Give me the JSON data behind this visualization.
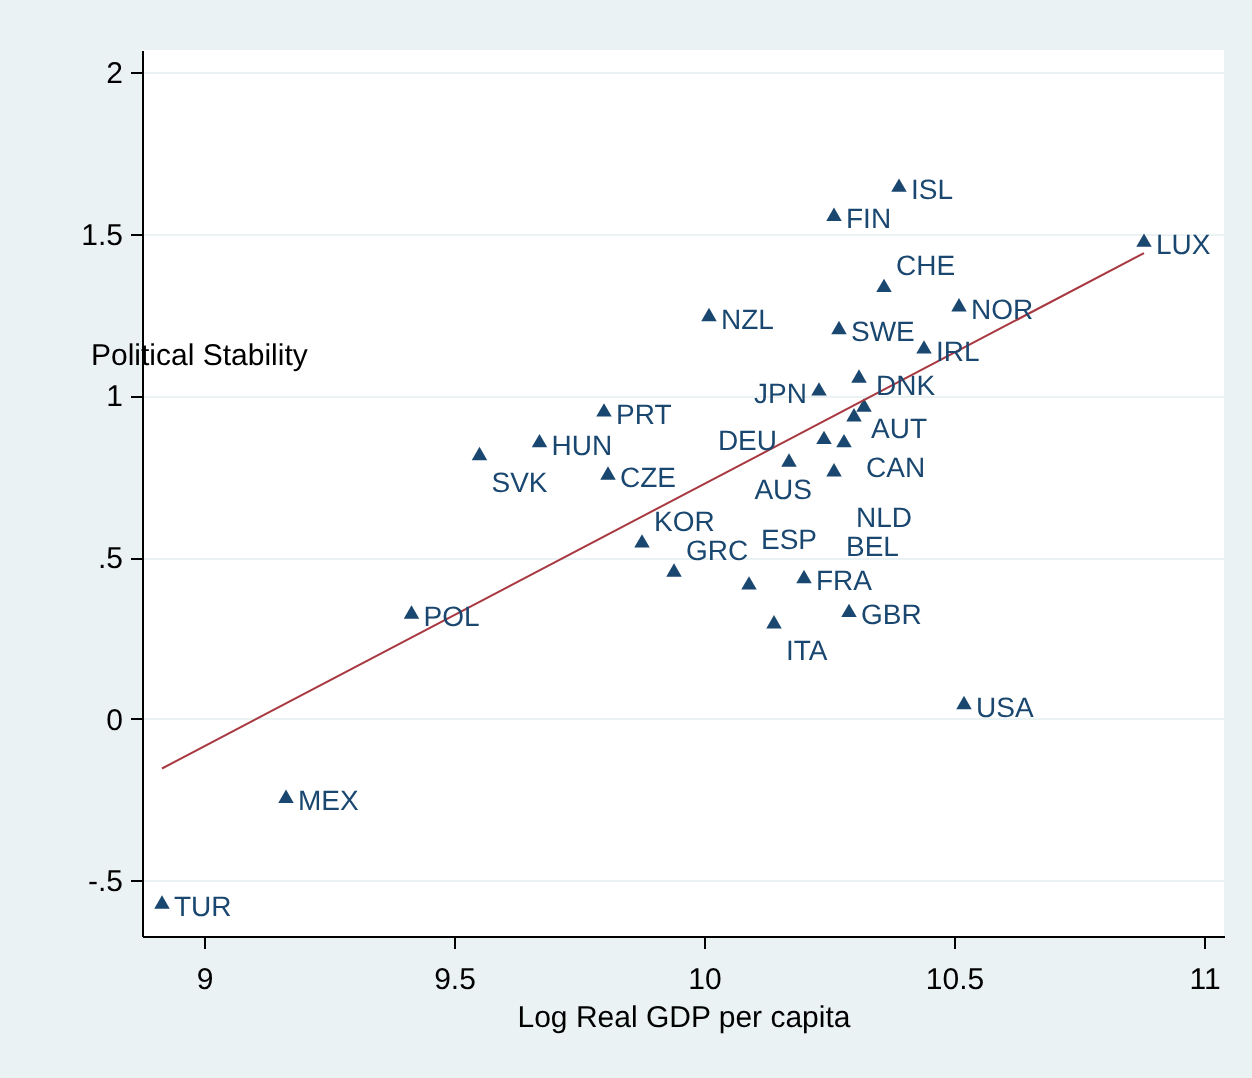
{
  "chart_data": {
    "type": "scatter",
    "xlabel": "Log Real GDP  per capita",
    "ylabel": "Political Stability",
    "xlim": [
      8.876,
      11.04
    ],
    "ylim": [
      -0.672,
      2.068
    ],
    "xticks": [
      9,
      9.5,
      10,
      10.5,
      11
    ],
    "yticks": [
      2,
      1.5,
      1,
      {
        "value": 0.5,
        "label": ".5"
      },
      0,
      {
        "value": -0.5,
        "label": "-.5"
      }
    ],
    "grid": "y",
    "series": [
      {
        "marker": "triangle",
        "color": "#1a476f",
        "x": [
          8.916,
          9.164,
          9.415,
          9.551,
          9.671,
          9.8,
          9.808,
          9.876,
          9.94,
          10.09,
          10.2,
          10.14,
          10.29,
          10.52,
          10.01,
          10.26,
          10.39,
          10.88,
          10.36,
          10.51,
          10.27,
          10.44,
          10.31,
          10.23,
          10.32,
          10.3,
          10.24,
          10.28,
          10.17,
          10.26
        ],
        "values": [
          -0.567,
          -0.24,
          0.33,
          0.82,
          0.86,
          0.955,
          0.76,
          0.55,
          0.46,
          0.42,
          0.44,
          0.3,
          0.335,
          0.05,
          1.25,
          1.56,
          1.65,
          1.48,
          1.34,
          1.28,
          1.21,
          1.15,
          1.06,
          1.02,
          0.97,
          0.94,
          0.87,
          0.86,
          0.8,
          0.77
        ]
      },
      {
        "type": "line",
        "marker": "none",
        "line_style": "solid",
        "color": "#a8373f",
        "x": [
          8.916,
          10.88
        ],
        "values": [
          -0.154,
          1.44
        ]
      }
    ],
    "annotations": [
      {
        "text": "TUR",
        "x": 8.916,
        "y": -0.567
      },
      {
        "text": "MEX",
        "x": 9.164,
        "y": -0.24
      },
      {
        "text": "POL",
        "x": 9.415,
        "y": 0.33
      },
      {
        "text": "SVK",
        "x": 9.551,
        "y": 0.82
      },
      {
        "text": "HUN",
        "x": 9.671,
        "y": 0.86
      },
      {
        "text": "PRT",
        "x": 9.8,
        "y": 0.955
      },
      {
        "text": "CZE",
        "x": 9.808,
        "y": 0.76
      },
      {
        "text": "KOR",
        "x": 9.876,
        "y": 0.55
      },
      {
        "text": "GRC",
        "x": 9.94,
        "y": 0.46
      },
      {
        "text": "ESP",
        "x": 10.09,
        "y": 0.42
      },
      {
        "text": "FRA",
        "x": 10.2,
        "y": 0.44
      },
      {
        "text": "ITA",
        "x": 10.14,
        "y": 0.3
      },
      {
        "text": "GBR",
        "x": 10.29,
        "y": 0.335
      },
      {
        "text": "USA",
        "x": 10.52,
        "y": 0.05
      },
      {
        "text": "NZL",
        "x": 10.01,
        "y": 1.25
      },
      {
        "text": "FIN",
        "x": 10.26,
        "y": 1.56
      },
      {
        "text": "ISL",
        "x": 10.39,
        "y": 1.65
      },
      {
        "text": "LUX",
        "x": 10.88,
        "y": 1.48
      },
      {
        "text": "CHE",
        "x": 10.36,
        "y": 1.34
      },
      {
        "text": "NOR",
        "x": 10.51,
        "y": 1.28
      },
      {
        "text": "SWE",
        "x": 10.27,
        "y": 1.21
      },
      {
        "text": "IRL",
        "x": 10.44,
        "y": 1.15
      },
      {
        "text": "AUT",
        "x": 10.31,
        "y": 1.06
      },
      {
        "text": "JPN",
        "x": 10.23,
        "y": 1.02
      },
      {
        "text": "DNK",
        "x": 10.32,
        "y": 0.97
      },
      {
        "text": "CAN",
        "x": 10.3,
        "y": 0.94
      },
      {
        "text": "AUS",
        "x": 10.24,
        "y": 0.87
      },
      {
        "text": "NLD",
        "x": 10.28,
        "y": 0.86
      },
      {
        "text": "DEU",
        "x": 10.17,
        "y": 0.8
      },
      {
        "text": "BEL",
        "x": 10.26,
        "y": 0.77
      }
    ]
  }
}
